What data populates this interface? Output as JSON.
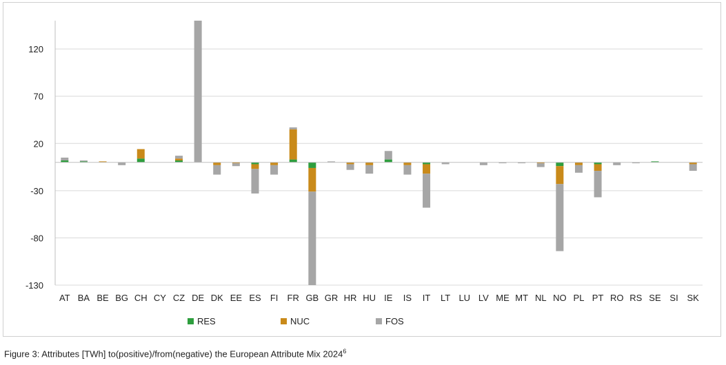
{
  "chart_data": {
    "type": "bar",
    "stacked": true,
    "categories": [
      "AT",
      "BA",
      "BE",
      "BG",
      "CH",
      "CY",
      "CZ",
      "DE",
      "DK",
      "EE",
      "ES",
      "FI",
      "FR",
      "GB",
      "GR",
      "HR",
      "HU",
      "IE",
      "IS",
      "IT",
      "LT",
      "LU",
      "LV",
      "ME",
      "MT",
      "NL",
      "NO",
      "PL",
      "PT",
      "RO",
      "RS",
      "SE",
      "SI",
      "SK"
    ],
    "series": [
      {
        "name": "RES",
        "color": "#2e9e3e",
        "values": [
          2,
          1,
          0,
          0,
          4,
          0,
          2,
          0,
          0,
          0,
          -2,
          0,
          3,
          -6,
          0,
          0,
          0,
          3,
          0,
          -2,
          0,
          0,
          0,
          0,
          0,
          0,
          -4,
          0,
          -2,
          0,
          0,
          1,
          0,
          0
        ]
      },
      {
        "name": "NUC",
        "color": "#c98a1a",
        "values": [
          0,
          0,
          1,
          0,
          10,
          0,
          2,
          0,
          -3,
          -1,
          -5,
          -3,
          32,
          -25,
          0,
          -2,
          -3,
          0,
          -3,
          -10,
          0,
          0,
          0,
          0,
          0,
          -1,
          -19,
          -3,
          -7,
          0,
          0,
          0,
          0,
          -2
        ]
      },
      {
        "name": "FOS",
        "color": "#a6a6a6",
        "values": [
          3,
          1,
          0,
          -3,
          0,
          0,
          3,
          150,
          -10,
          -3,
          -26,
          -10,
          2,
          -99,
          1,
          -6,
          -9,
          9,
          -10,
          -36,
          -2,
          0,
          -3,
          -1,
          -1,
          -4,
          -71,
          -8,
          -28,
          -3,
          -1,
          0,
          0,
          -7
        ]
      }
    ],
    "yticks": [
      120,
      70,
      20,
      -30,
      -80,
      -130
    ],
    "ylim": [
      -130,
      150
    ],
    "grid": true,
    "legend_position": "bottom",
    "caption": "Figure 3: Attributes [TWh] to(positive)/from(negative) the European Attribute Mix 2024",
    "caption_footnote": "6"
  }
}
